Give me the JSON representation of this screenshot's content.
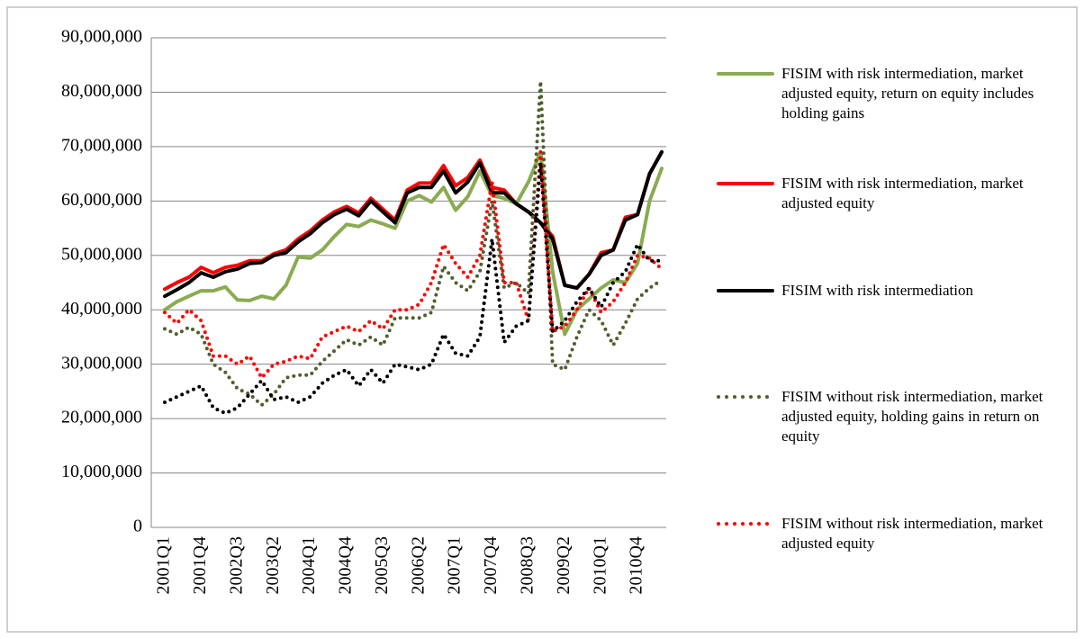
{
  "chart_data": {
    "type": "line",
    "categories": [
      "2001Q1",
      null,
      null,
      "2001Q4",
      null,
      null,
      "2002Q3",
      null,
      null,
      "2003Q2",
      null,
      null,
      "2004Q1",
      null,
      null,
      "2004Q4",
      null,
      null,
      "2005Q3",
      null,
      null,
      "2006Q2",
      null,
      null,
      "2007Q1",
      null,
      null,
      "2007Q4",
      null,
      null,
      "2008Q3",
      null,
      null,
      "2009Q2",
      null,
      null,
      "2010Q1",
      null,
      null,
      "2010Q4",
      null,
      null
    ],
    "ylim": [
      0,
      90000000
    ],
    "yticks": [
      0,
      {
        "value": 10000000,
        "label": "10,000,000"
      },
      {
        "value": 20000000,
        "label": "20,000,000"
      },
      {
        "value": 30000000,
        "label": "30,000,000"
      },
      {
        "value": 40000000,
        "label": "40,000,000"
      },
      {
        "value": 50000000,
        "label": "50,000,000"
      },
      {
        "value": 60000000,
        "label": "60,000,000"
      },
      {
        "value": 70000000,
        "label": "70,000,000"
      },
      {
        "value": 80000000,
        "label": "80,000,000"
      },
      {
        "value": 90000000,
        "label": "90,000,000"
      }
    ],
    "grid": true,
    "legend": "right",
    "series": [
      {
        "name": "FISIM with risk intermediation, market adjusted equity, return on equity includes holding gains",
        "color": "#8aab52",
        "line_style": "solid",
        "values": [
          40000000,
          41500000,
          42500000,
          43500000,
          43500000,
          44200000,
          41800000,
          41700000,
          42500000,
          42000000,
          44500000,
          49700000,
          49500000,
          51000000,
          53500000,
          55700000,
          55300000,
          56500000,
          55800000,
          55000000,
          60000000,
          61000000,
          59800000,
          62500000,
          58300000,
          60800000,
          65500000,
          61000000,
          60500000,
          59500000,
          63500000,
          69000000,
          47000000,
          35500000,
          40000000,
          42000000,
          44000000,
          45500000,
          45000000,
          48500000,
          60000000,
          66000000
        ]
      },
      {
        "name": "FISIM with risk intermediation, market adjusted equity",
        "color": "#ff0000",
        "line_style": "solid",
        "values": [
          43800000,
          45000000,
          46000000,
          47800000,
          46800000,
          47800000,
          48200000,
          49000000,
          49000000,
          50300000,
          51000000,
          53000000,
          54500000,
          56500000,
          58000000,
          59000000,
          57800000,
          60500000,
          58500000,
          56500000,
          62000000,
          63300000,
          63300000,
          66500000,
          62800000,
          64300000,
          67500000,
          62500000,
          62000000,
          59500000,
          58000000,
          56000000,
          53500000,
          44500000,
          44000000,
          46500000,
          50500000,
          51000000,
          57000000,
          57500000,
          65000000,
          69000000
        ]
      },
      {
        "name": "FISIM with risk intermediation",
        "color": "#000000",
        "line_style": "solid",
        "values": [
          42500000,
          43700000,
          45000000,
          46800000,
          46000000,
          47000000,
          47500000,
          48500000,
          48700000,
          50000000,
          50500000,
          52500000,
          54000000,
          56000000,
          57500000,
          58500000,
          57300000,
          60000000,
          58000000,
          56000000,
          61500000,
          62500000,
          62500000,
          65500000,
          61500000,
          63500000,
          67000000,
          61500000,
          61500000,
          59500000,
          58000000,
          56000000,
          53000000,
          44500000,
          44000000,
          46500000,
          50000000,
          51000000,
          56500000,
          57500000,
          65000000,
          69000000
        ]
      },
      {
        "name": "FISIM without risk intermediation, market adjusted equity, holding gains in return on equity",
        "color": "#4e5f2e",
        "line_style": "dotted",
        "values": [
          36500000,
          35500000,
          36800000,
          35500000,
          30000000,
          28500000,
          25500000,
          24500000,
          22500000,
          24500000,
          27500000,
          28000000,
          28000000,
          30500000,
          32500000,
          34500000,
          33500000,
          35000000,
          33500000,
          38500000,
          38500000,
          38500000,
          39500000,
          48000000,
          45000000,
          43500000,
          47000000,
          60000000,
          44000000,
          45000000,
          43000000,
          82000000,
          30000000,
          29000000,
          35000000,
          40000000,
          38000000,
          33500000,
          37500000,
          42000000,
          44000000,
          45500000
        ]
      },
      {
        "name": "FISIM without risk intermediation, market adjusted equity",
        "color": "#ff0000",
        "line_style": "dotted",
        "values": [
          39500000,
          37500000,
          40000000,
          38000000,
          31500000,
          31500000,
          30000000,
          31500000,
          27500000,
          30000000,
          30500000,
          31500000,
          31000000,
          35000000,
          36000000,
          37000000,
          36000000,
          38000000,
          36500000,
          40000000,
          40000000,
          41000000,
          45000000,
          52000000,
          48500000,
          46000000,
          50000000,
          63500000,
          45000000,
          45000000,
          38000000,
          69000000,
          36000000,
          37000000,
          40000000,
          44000000,
          39500000,
          41500000,
          45000000,
          50000000,
          49500000,
          47500000
        ]
      },
      {
        "color": "#000000",
        "line_style": "dotted",
        "values": [
          23000000,
          24000000,
          25000000,
          26000000,
          22000000,
          21000000,
          22000000,
          24500000,
          27000000,
          23500000,
          24000000,
          23000000,
          24000000,
          26500000,
          28000000,
          29000000,
          26000000,
          29000000,
          26500000,
          30000000,
          29500000,
          29000000,
          30000000,
          35500000,
          32000000,
          31500000,
          35000000,
          53000000,
          34000000,
          37000000,
          38000000,
          67000000,
          36000000,
          38000000,
          41500000,
          44000000,
          40500000,
          45000000,
          47000000,
          52000000,
          49000000,
          49000000
        ]
      }
    ]
  }
}
